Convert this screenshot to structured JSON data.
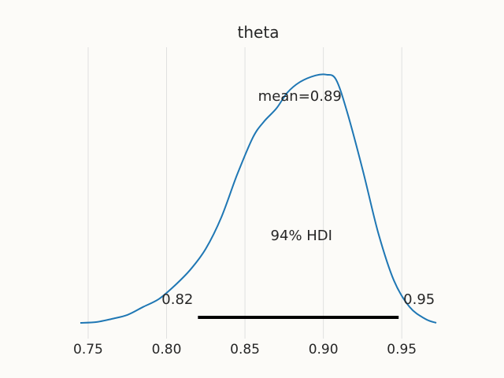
{
  "chart_data": {
    "type": "line",
    "title": "theta",
    "xlabel": "",
    "ylabel": "",
    "xlim": [
      0.745,
      0.972
    ],
    "ylim": [
      0,
      1
    ],
    "x_ticks": [
      0.75,
      0.8,
      0.85,
      0.9,
      0.95
    ],
    "x_tick_labels": [
      "0.75",
      "0.80",
      "0.85",
      "0.90",
      "0.95"
    ],
    "grid": "vertical",
    "series": [
      {
        "name": "",
        "color": "#1f77b4",
        "x": [
          0.745,
          0.755,
          0.765,
          0.775,
          0.785,
          0.795,
          0.805,
          0.815,
          0.825,
          0.835,
          0.845,
          0.855,
          0.862,
          0.87,
          0.877,
          0.885,
          0.895,
          0.902,
          0.908,
          0.915,
          0.925,
          0.935,
          0.945,
          0.955,
          0.965,
          0.972
        ],
        "y": [
          0.0,
          0.003,
          0.015,
          0.03,
          0.06,
          0.09,
          0.14,
          0.2,
          0.28,
          0.4,
          0.56,
          0.7,
          0.76,
          0.81,
          0.87,
          0.91,
          0.935,
          0.938,
          0.92,
          0.8,
          0.58,
          0.34,
          0.16,
          0.06,
          0.015,
          0.0
        ]
      }
    ],
    "annotations": {
      "mean_label": "mean=0.89",
      "hdi_label": "94% HDI",
      "hdi_low": 0.82,
      "hdi_high": 0.948,
      "hdi_low_label": "0.82",
      "hdi_high_label": "0.95"
    }
  }
}
